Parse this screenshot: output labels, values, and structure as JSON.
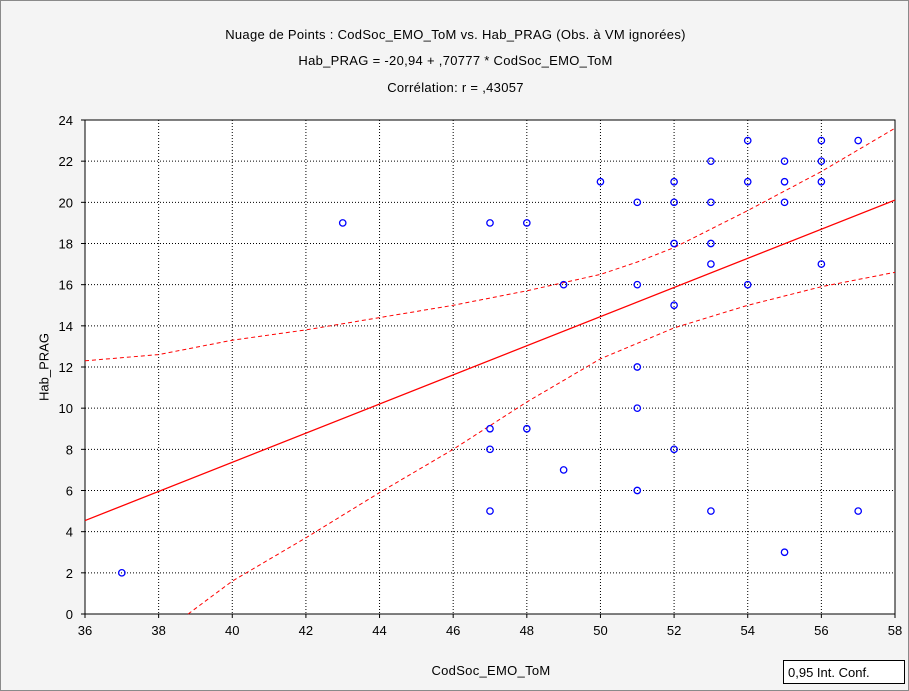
{
  "chart_data": {
    "type": "scatter",
    "title": "Nuage de Points : CodSoc_EMO_ToM vs. Hab_PRAG (Obs. à VM ignorées)",
    "equation": "Hab_PRAG = -20,94 + ,70777 * CodSoc_EMO_ToM",
    "correlation": "Corrélation: r = ,43057",
    "xlabel": "CodSoc_EMO_ToM",
    "ylabel": "Hab_PRAG",
    "xlim": [
      36,
      58
    ],
    "ylim": [
      0,
      24
    ],
    "xticks": [
      36,
      38,
      40,
      42,
      44,
      46,
      48,
      50,
      52,
      54,
      56,
      58
    ],
    "yticks": [
      0,
      2,
      4,
      6,
      8,
      10,
      12,
      14,
      16,
      18,
      20,
      22,
      24
    ],
    "grid": true,
    "regression": {
      "intercept": -20.94,
      "slope": 0.70777
    },
    "confidence_label": "0,95 Int. Conf.",
    "point_color": "#0000ff",
    "line_color": "#ff0000",
    "points": [
      [
        37,
        2
      ],
      [
        43,
        19
      ],
      [
        47,
        19
      ],
      [
        47,
        9
      ],
      [
        47,
        8
      ],
      [
        47,
        5
      ],
      [
        48,
        19
      ],
      [
        48,
        9
      ],
      [
        49,
        16
      ],
      [
        49,
        7
      ],
      [
        50,
        21
      ],
      [
        51,
        20
      ],
      [
        51,
        16
      ],
      [
        51,
        12
      ],
      [
        51,
        10
      ],
      [
        51,
        6
      ],
      [
        52,
        21
      ],
      [
        52,
        20
      ],
      [
        52,
        18
      ],
      [
        52,
        15
      ],
      [
        52,
        8
      ],
      [
        53,
        22
      ],
      [
        53,
        20
      ],
      [
        53,
        18
      ],
      [
        53,
        17
      ],
      [
        53,
        5
      ],
      [
        54,
        23
      ],
      [
        54,
        21
      ],
      [
        54,
        16
      ],
      [
        55,
        22
      ],
      [
        55,
        21
      ],
      [
        55,
        20
      ],
      [
        55,
        3
      ],
      [
        56,
        23
      ],
      [
        56,
        22
      ],
      [
        56,
        21
      ],
      [
        56,
        17
      ],
      [
        57,
        23
      ],
      [
        57,
        5
      ]
    ],
    "ci_upper": [
      [
        36,
        12.3
      ],
      [
        38,
        12.6
      ],
      [
        40,
        13.3
      ],
      [
        42,
        13.8
      ],
      [
        44,
        14.4
      ],
      [
        46,
        15.0
      ],
      [
        48,
        15.7
      ],
      [
        50,
        16.5
      ],
      [
        51,
        17.1
      ],
      [
        52,
        17.8
      ],
      [
        54,
        19.6
      ],
      [
        56,
        21.5
      ],
      [
        58,
        23.6
      ]
    ],
    "ci_lower": [
      [
        38.8,
        0
      ],
      [
        40,
        1.6
      ],
      [
        42,
        3.7
      ],
      [
        44,
        5.9
      ],
      [
        46,
        8.0
      ],
      [
        48,
        10.3
      ],
      [
        50,
        12.4
      ],
      [
        52,
        13.9
      ],
      [
        54,
        15.0
      ],
      [
        56,
        15.9
      ],
      [
        58,
        16.6
      ]
    ]
  }
}
